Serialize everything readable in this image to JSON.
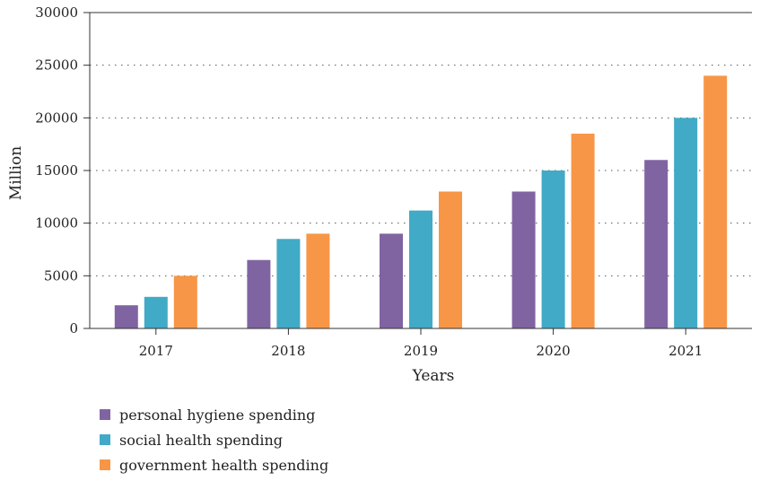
{
  "chart_data": {
    "type": "bar",
    "title": "",
    "xlabel": "Years",
    "ylabel": "Million",
    "categories": [
      "2017",
      "2018",
      "2019",
      "2020",
      "2021"
    ],
    "ylim": [
      0,
      30000
    ],
    "yticks": [
      0,
      5000,
      10000,
      15000,
      20000,
      25000,
      30000
    ],
    "grid": "horizontal dotted",
    "legend_position": "bottom-left",
    "series": [
      {
        "name": "personal hygiene spending",
        "color": "#8064a2",
        "values": [
          2200,
          6500,
          9000,
          13000,
          16000
        ]
      },
      {
        "name": "social health spending",
        "color": "#41aac6",
        "values": [
          3000,
          8500,
          11200,
          15000,
          20000
        ]
      },
      {
        "name": "government health spending",
        "color": "#f79646",
        "values": [
          5000,
          9000,
          13000,
          18500,
          24000
        ]
      }
    ]
  }
}
